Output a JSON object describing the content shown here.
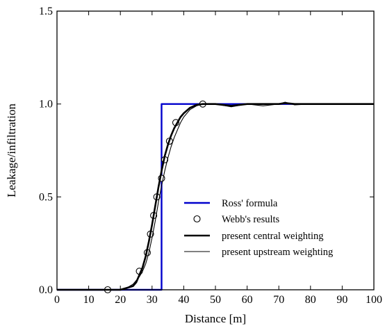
{
  "chart_data": {
    "type": "line",
    "xlabel": "Distance [m]",
    "ylabel": "Leakage/infiltration",
    "xlim": [
      0,
      100
    ],
    "ylim": [
      0,
      1.5
    ],
    "xticks": [
      0,
      10,
      20,
      30,
      40,
      50,
      60,
      70,
      80,
      90,
      100
    ],
    "yticks": [
      0,
      0.5,
      1,
      1.5
    ],
    "ytick_labels": [
      "0.0",
      "0.5",
      "1.0",
      "1.5"
    ],
    "grid": false,
    "legend_position": "bottom-right",
    "series": [
      {
        "name": "Ross' formula",
        "style": "step",
        "color": "#0000cc",
        "x": [
          0,
          33,
          33,
          100
        ],
        "y": [
          0,
          0,
          1,
          1
        ]
      },
      {
        "name": "Webb's results",
        "style": "markers",
        "color": "#000000",
        "x": [
          16,
          26,
          28.5,
          29.5,
          30.5,
          31.5,
          33,
          34,
          35.5,
          37.5,
          46
        ],
        "y": [
          0,
          0.1,
          0.2,
          0.3,
          0.4,
          0.5,
          0.6,
          0.7,
          0.8,
          0.9,
          1.0
        ]
      },
      {
        "name": "present central weighting",
        "style": "thick-line",
        "color": "#000000",
        "x": [
          0,
          20,
          22,
          24,
          25,
          26,
          27,
          28,
          29,
          30,
          31,
          32,
          33,
          34,
          35,
          36,
          37,
          38,
          39,
          40,
          42,
          44,
          46,
          50,
          55,
          60,
          65,
          70,
          72,
          75,
          80,
          90,
          100
        ],
        "y": [
          0,
          0,
          0.01,
          0.02,
          0.04,
          0.08,
          0.12,
          0.18,
          0.26,
          0.35,
          0.45,
          0.55,
          0.64,
          0.72,
          0.78,
          0.83,
          0.87,
          0.9,
          0.93,
          0.95,
          0.98,
          0.995,
          1.0,
          1.0,
          0.99,
          1.0,
          1.0,
          1.0,
          1.005,
          1.0,
          1.0,
          1.0,
          1.0
        ]
      },
      {
        "name": "present upstream weighting",
        "style": "thin-line",
        "color": "#000000",
        "x": [
          0,
          20,
          22,
          24,
          25,
          26,
          27,
          28,
          29,
          30,
          31,
          32,
          33,
          34,
          35,
          36,
          37,
          38,
          39,
          40,
          42,
          44,
          46,
          50,
          55,
          60,
          65,
          70,
          72,
          75,
          80,
          90,
          100
        ],
        "y": [
          0,
          0,
          0.01,
          0.03,
          0.05,
          0.07,
          0.1,
          0.14,
          0.2,
          0.28,
          0.37,
          0.47,
          0.56,
          0.64,
          0.71,
          0.77,
          0.82,
          0.86,
          0.9,
          0.93,
          0.97,
          0.99,
          1.0,
          1.0,
          0.985,
          1.0,
          0.99,
          1.0,
          1.01,
          0.995,
          1.0,
          1.0,
          1.0
        ]
      }
    ]
  }
}
